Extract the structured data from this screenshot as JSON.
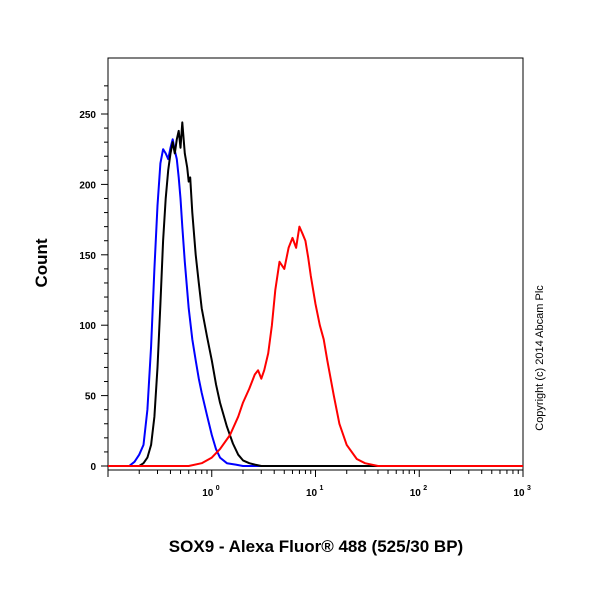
{
  "chart_data": {
    "type": "line",
    "title": "",
    "xlabel": "SOX9 - Alexa Fluor® 488 (525/30 BP)",
    "ylabel": "Count",
    "x_scale": "log",
    "xlim": [
      0.1,
      1000
    ],
    "ylim": [
      0,
      262
    ],
    "x_ticks": [
      {
        "base": "10",
        "exp": "0",
        "value": 1
      },
      {
        "base": "10",
        "exp": "1",
        "value": 10
      },
      {
        "base": "10",
        "exp": "2",
        "value": 100
      },
      {
        "base": "10",
        "exp": "3",
        "value": 1000
      }
    ],
    "y_ticks": [
      0,
      50,
      100,
      150,
      200,
      250
    ],
    "grid": false,
    "legend": "none",
    "annotations": [
      {
        "text": "Copyright (c) 2014 Abcam Plc"
      }
    ],
    "series": [
      {
        "color": "#0000ff",
        "x": [
          0.1,
          0.16,
          0.18,
          0.2,
          0.22,
          0.24,
          0.26,
          0.28,
          0.3,
          0.32,
          0.34,
          0.36,
          0.38,
          0.4,
          0.42,
          0.44,
          0.46,
          0.48,
          0.5,
          0.52,
          0.55,
          0.6,
          0.65,
          0.7,
          0.75,
          0.8,
          0.9,
          1.0,
          1.1,
          1.2,
          1.4,
          1.7,
          2.0,
          3.0,
          1000
        ],
        "y": [
          0,
          0,
          3,
          8,
          15,
          40,
          85,
          140,
          185,
          215,
          225,
          222,
          218,
          226,
          232,
          224,
          218,
          205,
          190,
          170,
          145,
          112,
          90,
          75,
          62,
          52,
          36,
          22,
          12,
          6,
          2,
          1,
          0,
          0,
          0
        ]
      },
      {
        "color": "#000000",
        "x": [
          0.1,
          0.2,
          0.22,
          0.24,
          0.26,
          0.28,
          0.3,
          0.32,
          0.34,
          0.36,
          0.38,
          0.4,
          0.42,
          0.44,
          0.46,
          0.48,
          0.5,
          0.52,
          0.55,
          0.58,
          0.6,
          0.62,
          0.65,
          0.7,
          0.75,
          0.8,
          0.9,
          1.0,
          1.1,
          1.2,
          1.4,
          1.6,
          1.8,
          2.0,
          2.3,
          2.6,
          3.0,
          1000
        ],
        "y": [
          0,
          0,
          2,
          6,
          15,
          35,
          70,
          115,
          160,
          190,
          210,
          222,
          230,
          222,
          232,
          238,
          226,
          244,
          222,
          212,
          202,
          205,
          180,
          150,
          130,
          112,
          92,
          75,
          58,
          45,
          28,
          16,
          8,
          4,
          2,
          1,
          0,
          0
        ]
      },
      {
        "color": "#ff0000",
        "x": [
          0.1,
          0.6,
          0.8,
          1.0,
          1.2,
          1.5,
          1.8,
          2.0,
          2.3,
          2.6,
          2.8,
          3.0,
          3.2,
          3.5,
          3.8,
          4.1,
          4.5,
          5.0,
          5.5,
          6.0,
          6.5,
          7.0,
          7.5,
          8.0,
          8.5,
          9.0,
          10,
          11,
          12,
          13,
          15,
          17,
          20,
          25,
          30,
          40,
          1000
        ],
        "y": [
          0,
          0,
          2,
          6,
          12,
          22,
          35,
          45,
          55,
          65,
          68,
          62,
          68,
          80,
          100,
          125,
          145,
          140,
          155,
          162,
          155,
          170,
          165,
          160,
          148,
          135,
          115,
          100,
          90,
          75,
          50,
          30,
          15,
          5,
          2,
          0,
          0
        ]
      }
    ]
  }
}
